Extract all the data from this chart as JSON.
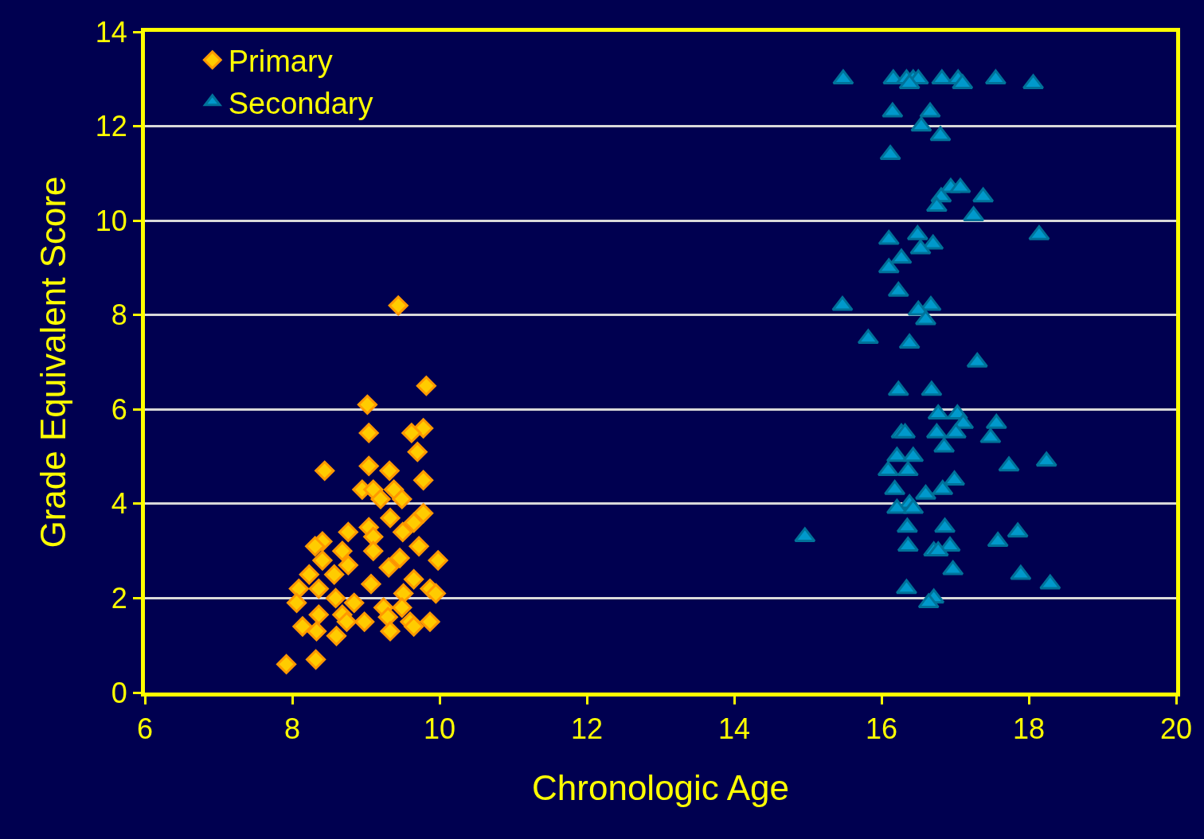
{
  "chart_data": {
    "type": "scatter",
    "xlabel": "Chronologic Age",
    "ylabel": "Grade Equivalent Score",
    "xlim": [
      6,
      20
    ],
    "xticks": [
      6,
      8,
      10,
      12,
      14,
      16,
      18,
      20
    ],
    "ylim": [
      0,
      14
    ],
    "yticks": [
      0,
      2,
      4,
      6,
      8,
      10,
      12,
      14
    ],
    "grid": "y",
    "legend": "top left",
    "series": [
      {
        "name": "Primary",
        "color": "#ffcc00",
        "marker": "diamond",
        "x": [
          7.92,
          8.32,
          9.44,
          9.82,
          9.02,
          9.04,
          9.78,
          9.62,
          9.7,
          8.44,
          9.04,
          9.32,
          9.78,
          8.95,
          9.1,
          9.2,
          9.38,
          9.49,
          9.78,
          9.33,
          9.65,
          8.76,
          9.04,
          9.5,
          8.41,
          8.31,
          9.1,
          9.72,
          9.98,
          9.46,
          9.1,
          8.68,
          8.41,
          8.76,
          9.31,
          8.57,
          8.23,
          9.07,
          8.09,
          8.36,
          9.65,
          9.87,
          9.95,
          9.51,
          8.59,
          8.06,
          8.84,
          9.24,
          9.49,
          8.68,
          8.36,
          8.98,
          9.3,
          9.6,
          9.87,
          8.14,
          8.33,
          8.6,
          9.33,
          9.65,
          8.74
        ],
        "values": [
          0.6,
          0.7,
          8.2,
          6.5,
          6.1,
          5.5,
          5.6,
          5.5,
          5.1,
          4.7,
          4.8,
          4.7,
          4.5,
          4.3,
          4.3,
          4.1,
          4.3,
          4.1,
          3.8,
          3.7,
          3.6,
          3.4,
          3.5,
          3.4,
          3.2,
          3.1,
          3.3,
          3.1,
          2.8,
          2.85,
          3.0,
          3.0,
          2.8,
          2.7,
          2.65,
          2.5,
          2.5,
          2.3,
          2.2,
          2.2,
          2.4,
          2.2,
          2.1,
          2.1,
          2.0,
          1.9,
          1.9,
          1.8,
          1.8,
          1.65,
          1.65,
          1.5,
          1.6,
          1.5,
          1.5,
          1.4,
          1.3,
          1.2,
          1.3,
          1.4,
          1.5
        ]
      },
      {
        "name": "Secondary",
        "color": "#0099cc",
        "marker": "triangle",
        "x": [
          15.48,
          16.16,
          16.34,
          16.43,
          16.5,
          16.82,
          17.04,
          17.1,
          17.55,
          18.06,
          16.38,
          16.15,
          16.66,
          16.54,
          16.8,
          16.12,
          16.94,
          17.07,
          17.38,
          16.81,
          16.75,
          17.25,
          18.14,
          16.1,
          16.49,
          16.7,
          16.53,
          16.27,
          16.1,
          16.23,
          15.47,
          16.67,
          16.5,
          16.6,
          15.82,
          16.38,
          17.3,
          16.23,
          16.68,
          16.77,
          17.03,
          17.11,
          17.56,
          16.27,
          16.32,
          16.75,
          17.01,
          17.48,
          16.85,
          16.21,
          16.43,
          17.73,
          16.09,
          18.24,
          16.36,
          16.99,
          16.18,
          16.83,
          16.6,
          16.38,
          16.21,
          16.43,
          16.35,
          16.86,
          14.96,
          17.85,
          17.58,
          16.36,
          16.93,
          16.71,
          16.77,
          16.97,
          17.89,
          18.29,
          16.34,
          16.71,
          16.64
        ],
        "values": [
          13.0,
          13.0,
          13.0,
          13.0,
          13.0,
          13.0,
          13.0,
          12.9,
          13.0,
          12.9,
          12.9,
          12.3,
          12.3,
          12.0,
          11.8,
          11.4,
          10.7,
          10.7,
          10.5,
          10.5,
          10.3,
          10.1,
          9.7,
          9.6,
          9.7,
          9.5,
          9.4,
          9.2,
          9.0,
          8.5,
          8.2,
          8.2,
          8.1,
          7.9,
          7.5,
          7.4,
          7.0,
          6.4,
          6.4,
          5.9,
          5.9,
          5.7,
          5.7,
          5.5,
          5.5,
          5.5,
          5.5,
          5.4,
          5.2,
          5.0,
          5.0,
          4.8,
          4.7,
          4.9,
          4.7,
          4.5,
          4.3,
          4.3,
          4.2,
          4.0,
          3.9,
          3.9,
          3.5,
          3.5,
          3.3,
          3.4,
          3.2,
          3.1,
          3.1,
          3.0,
          3.0,
          2.6,
          2.5,
          2.3,
          2.2,
          2.0,
          1.9
        ]
      }
    ]
  }
}
